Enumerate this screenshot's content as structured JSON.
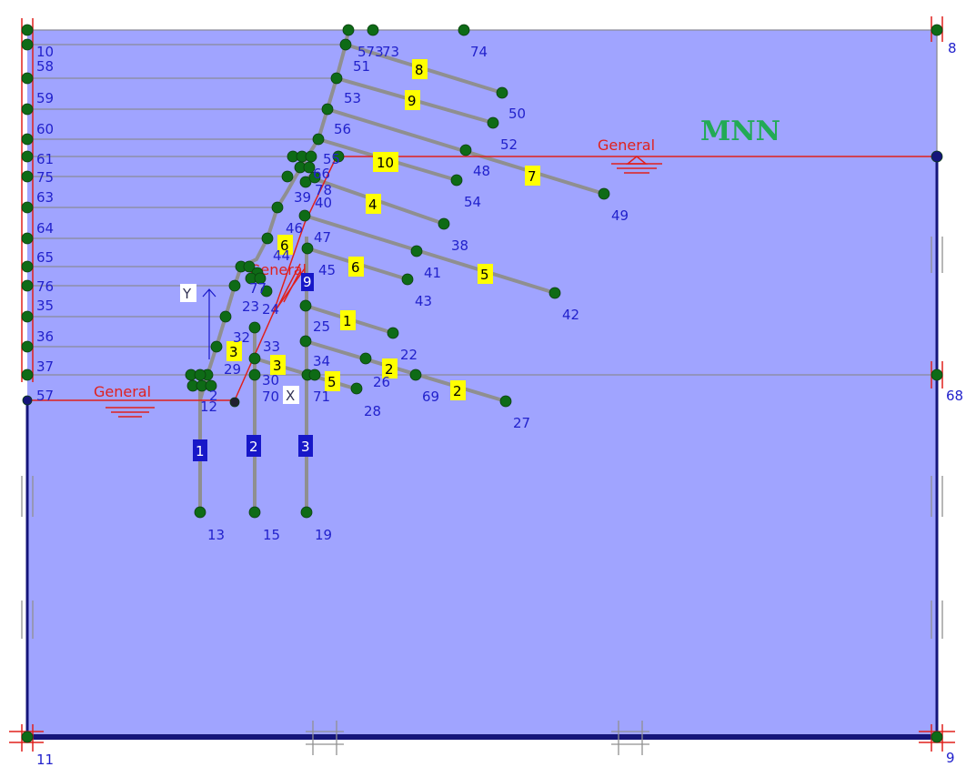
{
  "model_label": "MNN",
  "water_level_label": "General",
  "axis_labels": {
    "x": "X",
    "y": "Y"
  },
  "colors": {
    "soil": "#a0a4ff",
    "boundary": "#15157a",
    "layer_line": "#8a8a96",
    "element": "#8f8f90",
    "node": "#0e6b16",
    "node_label": "#2222cc",
    "water": "#e0201c",
    "element_tag_yellow": "#ffff00",
    "element_tag_blue": "#1717c8",
    "model_label": "#22aa55"
  },
  "node_labels": [
    "10",
    "58",
    "59",
    "60",
    "61",
    "75",
    "63",
    "64",
    "65",
    "76",
    "35",
    "36",
    "37",
    "57",
    "11",
    "8",
    "68",
    "9",
    "573",
    "74",
    "51",
    "53",
    "56",
    "55",
    "50",
    "52",
    "48",
    "54",
    "49",
    "38",
    "39",
    "40",
    "46",
    "47",
    "41",
    "42",
    "43",
    "45",
    "44",
    "23",
    "24",
    "25",
    "22",
    "32",
    "33",
    "29",
    "30",
    "34",
    "26",
    "69",
    "27",
    "28",
    "70",
    "71",
    "2",
    "12",
    "13",
    "15",
    "19",
    "73",
    "66",
    "77",
    "78"
  ],
  "element_tags_yellow": [
    "8",
    "9",
    "10",
    "7",
    "4",
    "6",
    "5",
    "6",
    "1",
    "3",
    "3",
    "2",
    "2",
    "5"
  ],
  "element_tags_blue": [
    "1",
    "2",
    "3",
    "9"
  ],
  "water_labels": [
    "General",
    "General",
    "General"
  ]
}
